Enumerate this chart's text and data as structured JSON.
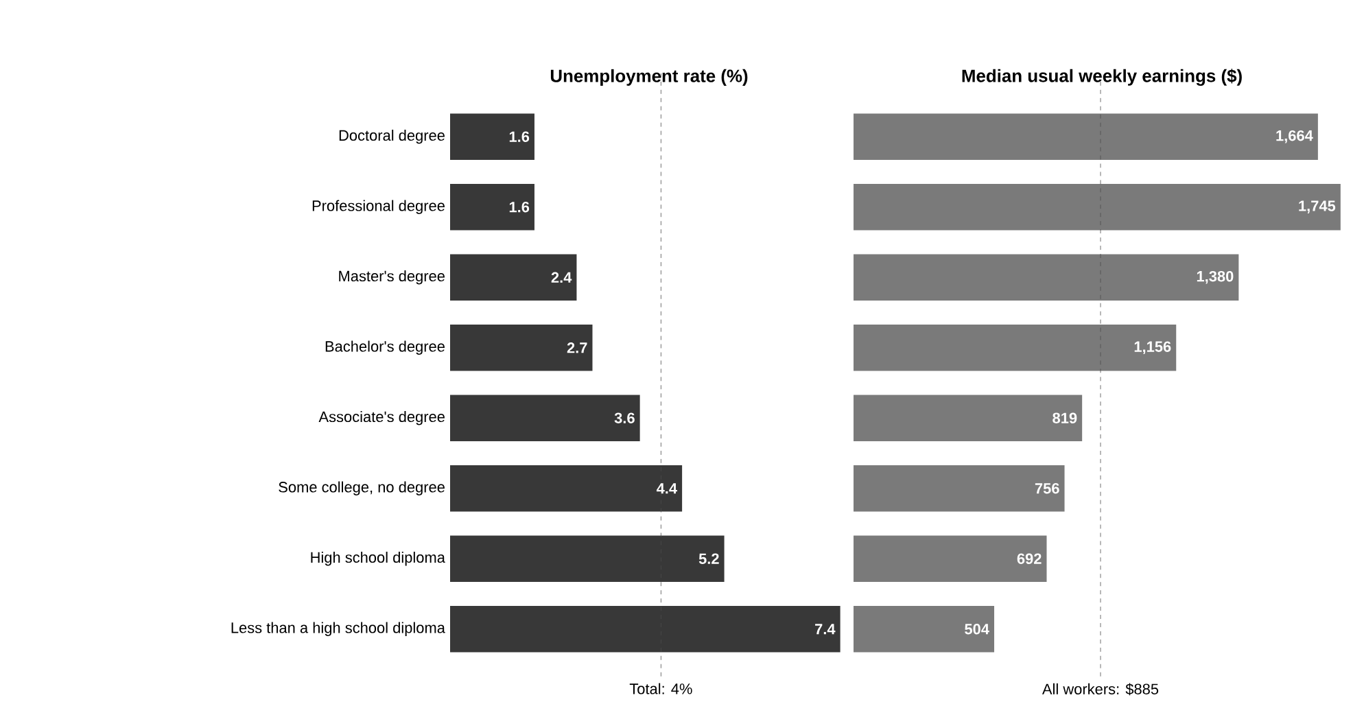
{
  "chart_data": [
    {
      "type": "bar",
      "orientation": "horizontal",
      "title": "Unemployment rate (%)",
      "categories": [
        "Doctoral degree",
        "Professional degree",
        "Master's degree",
        "Bachelor's degree",
        "Associate's degree",
        "Some college, no degree",
        "High school diploma",
        "Less than a high school diploma"
      ],
      "values": [
        1.6,
        1.6,
        2.4,
        2.7,
        3.6,
        4.4,
        5.2,
        7.4
      ],
      "value_labels": [
        "1.6",
        "1.6",
        "2.4",
        "2.7",
        "3.6",
        "4.4",
        "5.2",
        "7.4"
      ],
      "color": "#383838",
      "tick_labels": "y",
      "ref_lines": [
        {
          "axis": "x",
          "value": 4,
          "label": "Total: 4%",
          "line_style": "dashed"
        }
      ]
    },
    {
      "type": "bar",
      "orientation": "horizontal",
      "title": "Median usual weekly earnings ($)",
      "categories": [
        null,
        null,
        null,
        null,
        null,
        null,
        null,
        null
      ],
      "values": [
        1664,
        1745,
        1380,
        1156,
        819,
        756,
        692,
        504
      ],
      "value_labels": [
        "1,664",
        "1,745",
        "1,380",
        "1,156",
        "819",
        "756",
        "692",
        "504"
      ],
      "color": "#7a7a7a",
      "tick_labels": false,
      "ref_lines": [
        {
          "axis": "x",
          "value": 885,
          "label": "All workers: $885",
          "line_style": "dashed"
        }
      ]
    }
  ]
}
